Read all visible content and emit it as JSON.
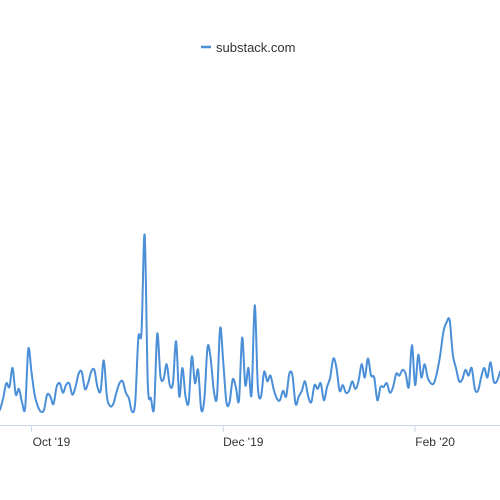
{
  "chart_data": {
    "type": "line",
    "legend": {
      "position": "top-center"
    },
    "series": [
      {
        "name": "substack.com",
        "color": "#4a8fd8",
        "values": [
          8,
          14,
          22,
          20,
          30,
          16,
          19,
          12,
          9,
          40,
          28,
          16,
          10,
          7,
          8,
          16,
          15,
          11,
          20,
          22,
          17,
          21,
          22,
          16,
          20,
          27,
          28,
          19,
          22,
          28,
          29,
          20,
          18,
          34,
          15,
          10,
          11,
          17,
          22,
          23,
          17,
          14,
          7,
          12,
          46,
          49,
          100,
          22,
          14,
          9,
          48,
          26,
          24,
          32,
          21,
          22,
          44,
          15,
          30,
          15,
          12,
          36,
          22,
          29,
          8,
          14,
          41,
          35,
          18,
          15,
          51,
          33,
          12,
          12,
          24,
          20,
          13,
          46,
          21,
          30,
          16,
          63,
          20,
          15,
          28,
          23,
          26,
          19,
          14,
          13,
          18,
          15,
          27,
          26,
          11,
          15,
          18,
          23,
          15,
          12,
          21,
          19,
          22,
          13,
          20,
          25,
          35,
          30,
          18,
          21,
          17,
          18,
          23,
          19,
          23,
          32,
          25,
          35,
          26,
          25,
          13,
          20,
          20,
          22,
          17,
          20,
          27,
          26,
          29,
          27,
          20,
          42,
          21,
          37,
          25,
          32,
          25,
          22,
          22,
          28,
          37,
          49,
          54,
          55,
          37,
          30,
          23,
          24,
          29,
          26,
          30,
          19,
          18,
          25,
          30,
          25,
          33,
          23,
          23,
          28
        ]
      }
    ],
    "x_ticks": [
      {
        "label": "Oct '19",
        "index": 10
      },
      {
        "label": "Dec '19",
        "index": 71
      },
      {
        "label": "Feb '20",
        "index": 132
      }
    ],
    "ylim": [
      0,
      100
    ],
    "grid": false
  }
}
